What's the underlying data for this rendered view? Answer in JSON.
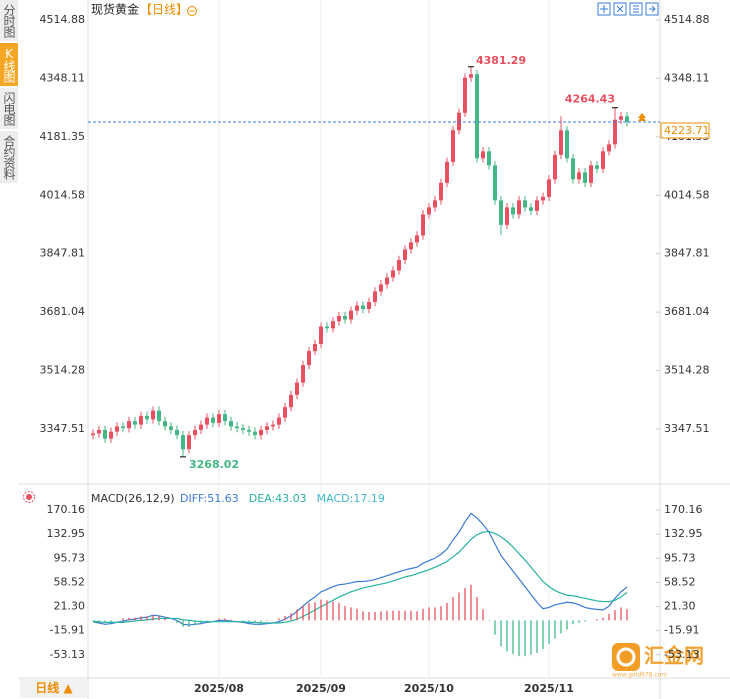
{
  "tabs": [
    "分时图",
    "K线图",
    "闪电图",
    "合约资料"
  ],
  "header": {
    "title": "现货黄金",
    "period": "【日线】"
  },
  "chart_data": [
    {
      "type": "candlestick",
      "categories": [
        null,
        null,
        null,
        null,
        null,
        null,
        null,
        null,
        null,
        null,
        null,
        null,
        null,
        null,
        null,
        null,
        null,
        null,
        null,
        null,
        null,
        "2025/08",
        null,
        null,
        null,
        null,
        null,
        null,
        null,
        null,
        null,
        null,
        null,
        null,
        null,
        null,
        null,
        null,
        "2025/09",
        null,
        null,
        null,
        null,
        null,
        null,
        null,
        null,
        null,
        null,
        null,
        null,
        null,
        null,
        null,
        null,
        null,
        "2025/10",
        null,
        null,
        null,
        null,
        null,
        null,
        null,
        null,
        null,
        null,
        null,
        null,
        null,
        null,
        null,
        null,
        null,
        null,
        null,
        "2025/11",
        null,
        null,
        null,
        null,
        null,
        null,
        null,
        null,
        null,
        null,
        null,
        null,
        null
      ],
      "open": [
        3330,
        3335,
        3345,
        3320,
        3340,
        3355,
        3350,
        3370,
        3360,
        3385,
        3375,
        3400,
        3370,
        3355,
        3345,
        3330,
        3290,
        3330,
        3345,
        3360,
        3380,
        3365,
        3390,
        3370,
        3355,
        3350,
        3345,
        3340,
        3330,
        3345,
        3355,
        3360,
        3380,
        3410,
        3445,
        3480,
        3530,
        3570,
        3590,
        3640,
        3635,
        3655,
        3670,
        3660,
        3685,
        3700,
        3690,
        3710,
        3740,
        3760,
        3780,
        3800,
        3830,
        3860,
        3880,
        3900,
        3960,
        3980,
        4000,
        4050,
        4110,
        4200,
        4250,
        4350,
        4360,
        4120,
        4140,
        4100,
        4000,
        3930,
        3980,
        3960,
        4000,
        3980,
        3970,
        4000,
        4010,
        4060,
        4130,
        4200,
        4120,
        4060,
        4080,
        4050,
        4100,
        4090,
        4140,
        4160,
        4230,
        4240
      ],
      "high": [
        3347,
        3357,
        3357,
        3352,
        3367,
        3367,
        3382,
        3382,
        3397,
        3397,
        3412,
        3412,
        3382,
        3367,
        3357,
        3342,
        3342,
        3357,
        3372,
        3392,
        3392,
        3402,
        3402,
        3382,
        3367,
        3362,
        3357,
        3352,
        3357,
        3367,
        3372,
        3392,
        3422,
        3457,
        3492,
        3542,
        3582,
        3602,
        3652,
        3652,
        3667,
        3682,
        3682,
        3697,
        3712,
        3712,
        3722,
        3752,
        3772,
        3792,
        3812,
        3842,
        3872,
        3892,
        3912,
        3972,
        3992,
        4012,
        4062,
        4122,
        4212,
        4262,
        4362,
        4381.29,
        4372,
        4152,
        4152,
        4112,
        4012,
        3992,
        3992,
        4012,
        4012,
        3992,
        4012,
        4022,
        4072,
        4142,
        4240,
        4212,
        4132,
        4092,
        4092,
        4112,
        4112,
        4152,
        4172,
        4264.43,
        4252,
        4252
      ],
      "low": [
        3318,
        3323,
        3308,
        3308,
        3328,
        3338,
        3338,
        3348,
        3348,
        3363,
        3363,
        3358,
        3343,
        3333,
        3318,
        3268.02,
        3278,
        3318,
        3333,
        3348,
        3353,
        3353,
        3358,
        3343,
        3338,
        3333,
        3328,
        3318,
        3318,
        3333,
        3343,
        3348,
        3368,
        3398,
        3433,
        3468,
        3518,
        3558,
        3578,
        3623,
        3623,
        3643,
        3648,
        3648,
        3673,
        3678,
        3678,
        3698,
        3728,
        3748,
        3768,
        3788,
        3818,
        3848,
        3868,
        3888,
        3948,
        3968,
        3988,
        4038,
        4098,
        4188,
        4238,
        4338,
        4108,
        4108,
        4088,
        3988,
        3900,
        3918,
        3948,
        3948,
        3968,
        3958,
        3958,
        3988,
        3998,
        4048,
        4118,
        4108,
        4048,
        4048,
        4038,
        4038,
        4078,
        4078,
        4128,
        4148,
        4218,
        4211
      ],
      "close": [
        3335,
        3345,
        3320,
        3340,
        3355,
        3350,
        3370,
        3360,
        3385,
        3375,
        3400,
        3370,
        3355,
        3345,
        3330,
        3290,
        3330,
        3345,
        3360,
        3380,
        3365,
        3390,
        3370,
        3355,
        3350,
        3345,
        3340,
        3330,
        3345,
        3355,
        3360,
        3380,
        3410,
        3445,
        3480,
        3530,
        3570,
        3590,
        3640,
        3635,
        3655,
        3670,
        3660,
        3685,
        3700,
        3690,
        3710,
        3740,
        3760,
        3780,
        3800,
        3830,
        3860,
        3880,
        3900,
        3960,
        3980,
        4000,
        4050,
        4110,
        4200,
        4250,
        4350,
        4360,
        4120,
        4140,
        4100,
        4000,
        3930,
        3980,
        3960,
        4000,
        3980,
        3970,
        4000,
        4010,
        4060,
        4130,
        4200,
        4120,
        4060,
        4080,
        4050,
        4100,
        4090,
        4140,
        4160,
        4230,
        4240,
        4223.71
      ],
      "up_color": "#e8505f",
      "down_color": "#43b886",
      "last_line_color": "#3b7dd8",
      "last_label_color": "#f08c00",
      "ylim": [
        3202,
        4549
      ],
      "yticks": [
        4514.88,
        4348.11,
        4181.35,
        4014.58,
        3847.81,
        3681.04,
        3514.28,
        3347.51
      ]
    },
    {
      "type": "macd",
      "title": "MACD(26,12,9)",
      "series": [
        {
          "name": "DIFF:51.63",
          "color": "#3a7bd5",
          "values": [
            -2,
            -4,
            -6,
            -5,
            -3,
            -1,
            1,
            2,
            4,
            5,
            8,
            7,
            5,
            3,
            0,
            -6,
            -7,
            -6,
            -5,
            -3,
            -2,
            0,
            0,
            -1,
            -2,
            -3,
            -5,
            -6,
            -6,
            -5,
            -4,
            -2,
            2,
            7,
            14,
            22,
            30,
            36,
            44,
            48,
            52,
            55,
            56,
            58,
            60,
            60,
            61,
            63,
            66,
            69,
            72,
            75,
            78,
            80,
            82,
            88,
            92,
            96,
            102,
            110,
            124,
            136,
            152,
            165,
            158,
            148,
            136,
            118,
            100,
            88,
            76,
            64,
            52,
            40,
            28,
            18,
            20,
            24,
            26,
            28,
            27,
            24,
            20,
            18,
            17,
            16,
            22,
            34,
            44,
            51.63
          ]
        },
        {
          "name": "DEA:43.03",
          "color": "#26b3a0",
          "values": [
            -1,
            -2,
            -3,
            -3,
            -3,
            -3,
            -2,
            -1,
            0,
            1,
            2,
            3,
            3,
            3,
            3,
            1,
            0,
            -1,
            -2,
            -2,
            -2,
            -2,
            -2,
            -2,
            -2,
            -2,
            -3,
            -3,
            -4,
            -4,
            -4,
            -4,
            -3,
            -1,
            2,
            6,
            11,
            16,
            21,
            26,
            31,
            36,
            40,
            44,
            47,
            50,
            52,
            54,
            56,
            58,
            61,
            64,
            67,
            69,
            72,
            75,
            78,
            82,
            86,
            91,
            98,
            105,
            115,
            125,
            132,
            136,
            137,
            134,
            129,
            122,
            113,
            103,
            93,
            82,
            71,
            60,
            52,
            46,
            42,
            39,
            38,
            36,
            34,
            32,
            30,
            29,
            29,
            31,
            36,
            43.03
          ]
        },
        {
          "name": "MACD:17.19",
          "color": "#3fb8c8",
          "up_color": "#e8505f",
          "down_color": "#43b886",
          "values": [
            -1,
            -3,
            -4,
            -3,
            0,
            3,
            4,
            4,
            6,
            6,
            8,
            6,
            3,
            0,
            -4,
            -10,
            -10,
            -7,
            -4,
            -1,
            0,
            3,
            3,
            1,
            0,
            -1,
            -3,
            -4,
            -3,
            -1,
            0,
            3,
            7,
            11,
            17,
            22,
            27,
            28,
            32,
            31,
            29,
            27,
            22,
            20,
            18,
            14,
            13,
            13,
            14,
            15,
            15,
            15,
            15,
            15,
            14,
            18,
            20,
            20,
            22,
            27,
            36,
            43,
            50,
            55,
            36,
            17,
            -1,
            -22,
            -40,
            -48,
            -52,
            -55,
            -55,
            -53,
            -50,
            -44,
            -36,
            -28,
            -20,
            -14,
            -6,
            -4,
            -2,
            0,
            2,
            4,
            10,
            16,
            20,
            17.19
          ]
        }
      ],
      "ylim": [
        -88.8,
        177.9
      ],
      "yticks": [
        170.16,
        132.95,
        95.73,
        58.52,
        {
          "value": 21.3,
          "label": "21.30"
        },
        -15.91,
        -53.13
      ]
    }
  ],
  "footer": {
    "period_button": "日线 ▲"
  },
  "watermark": {
    "name": "汇金网",
    "url": "www.gold678.com"
  }
}
